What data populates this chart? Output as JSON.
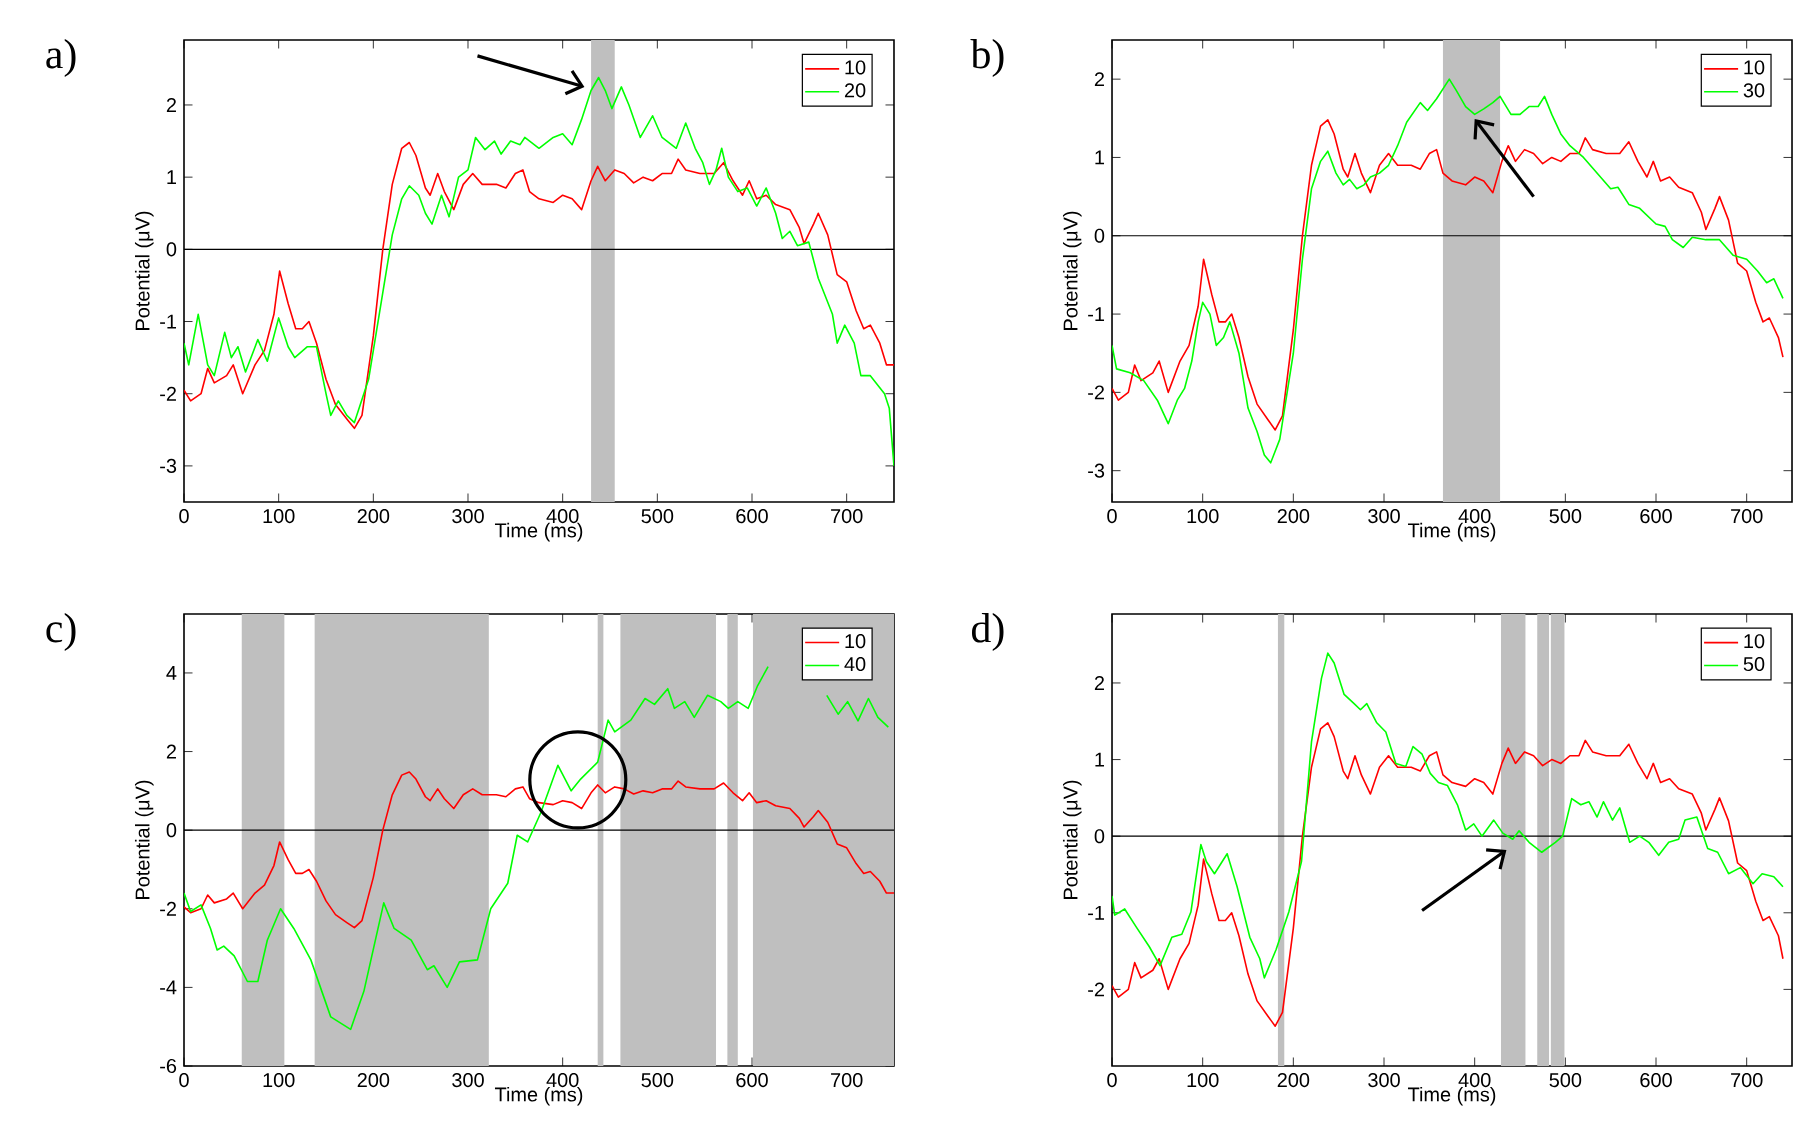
{
  "chart_data": [
    {
      "type": "line",
      "title": "a)",
      "xlabel": "Time (ms)",
      "ylabel": "Potential (μV)",
      "xlim": [
        0,
        750
      ],
      "ylim": [
        -3.5,
        2.9
      ],
      "xticks": [
        0,
        100,
        200,
        300,
        400,
        500,
        600,
        700
      ],
      "yticks": [
        -3,
        -2,
        -1,
        0,
        1,
        2
      ],
      "legend": "top right",
      "ref_lines": [
        {
          "axis": "y",
          "value": 0,
          "color": "#000000"
        }
      ],
      "bands": [
        {
          "axis": "x",
          "from": 430,
          "to": 455,
          "color": "#bfbfbf"
        }
      ],
      "series": [
        {
          "name": "10",
          "color": "#ff0000",
          "x": [
            0,
            7,
            18,
            25,
            32,
            45,
            52,
            62,
            75,
            85,
            95,
            101,
            110,
            118,
            125,
            132,
            140,
            150,
            160,
            172,
            180,
            188,
            200,
            210,
            220,
            230,
            238,
            245,
            255,
            260,
            268,
            275,
            285,
            295,
            305,
            315,
            330,
            340,
            350,
            358,
            365,
            375,
            390,
            400,
            410,
            420,
            430,
            437,
            445,
            455,
            465,
            475,
            485,
            495,
            505,
            515,
            522,
            530,
            545,
            560,
            570,
            580,
            590,
            597,
            605,
            615,
            625,
            640,
            650,
            655,
            665,
            670,
            680,
            690,
            700,
            710,
            718,
            725,
            735,
            742,
            750
          ],
          "values": [
            -1.95,
            -2.1,
            -2.0,
            -1.65,
            -1.85,
            -1.75,
            -1.6,
            -2.0,
            -1.6,
            -1.4,
            -0.9,
            -0.3,
            -0.75,
            -1.1,
            -1.1,
            -1.0,
            -1.3,
            -1.8,
            -2.15,
            -2.35,
            -2.48,
            -2.3,
            -1.2,
            0.0,
            0.9,
            1.4,
            1.48,
            1.3,
            0.85,
            0.75,
            1.05,
            0.8,
            0.55,
            0.9,
            1.05,
            0.9,
            0.9,
            0.85,
            1.05,
            1.1,
            0.8,
            0.7,
            0.65,
            0.75,
            0.7,
            0.55,
            0.95,
            1.15,
            0.95,
            1.1,
            1.05,
            0.92,
            1.0,
            0.95,
            1.05,
            1.05,
            1.25,
            1.1,
            1.05,
            1.05,
            1.2,
            0.95,
            0.75,
            0.95,
            0.7,
            0.75,
            0.62,
            0.55,
            0.3,
            0.08,
            0.35,
            0.5,
            0.2,
            -0.35,
            -0.45,
            -0.85,
            -1.1,
            -1.05,
            -1.3,
            -1.6,
            -1.6
          ]
        },
        {
          "name": "20",
          "color": "#00ff00",
          "x": [
            0,
            5,
            15,
            25,
            32,
            43,
            50,
            57,
            65,
            78,
            88,
            100,
            110,
            117,
            130,
            140,
            150,
            155,
            163,
            172,
            180,
            195,
            210,
            220,
            230,
            238,
            248,
            255,
            262,
            272,
            280,
            290,
            300,
            308,
            318,
            328,
            335,
            345,
            355,
            360,
            375,
            390,
            400,
            410,
            420,
            430,
            438,
            445,
            452,
            462,
            470,
            482,
            495,
            505,
            520,
            530,
            540,
            548,
            555,
            562,
            568,
            575,
            585,
            595,
            605,
            615,
            625,
            632,
            640,
            648,
            660,
            670,
            685,
            690,
            698,
            708,
            715,
            725,
            740,
            745,
            750
          ],
          "values": [
            -1.3,
            -1.6,
            -0.9,
            -1.6,
            -1.75,
            -1.15,
            -1.5,
            -1.35,
            -1.7,
            -1.25,
            -1.55,
            -0.95,
            -1.35,
            -1.5,
            -1.35,
            -1.35,
            -2.0,
            -2.3,
            -2.1,
            -2.3,
            -2.4,
            -1.8,
            -0.6,
            0.2,
            0.7,
            0.88,
            0.75,
            0.5,
            0.35,
            0.75,
            0.45,
            1.0,
            1.1,
            1.55,
            1.38,
            1.5,
            1.32,
            1.5,
            1.45,
            1.55,
            1.4,
            1.55,
            1.6,
            1.45,
            1.8,
            2.2,
            2.38,
            2.2,
            1.95,
            2.25,
            2.0,
            1.55,
            1.85,
            1.55,
            1.4,
            1.75,
            1.4,
            1.2,
            0.9,
            1.1,
            1.4,
            1.0,
            0.8,
            0.85,
            0.6,
            0.85,
            0.5,
            0.15,
            0.25,
            0.05,
            0.1,
            -0.4,
            -0.9,
            -1.3,
            -1.05,
            -1.3,
            -1.75,
            -1.75,
            -2.0,
            -2.2,
            -3.0
          ]
        }
      ]
    },
    {
      "type": "line",
      "title": "b)",
      "xlabel": "Time (ms)",
      "ylabel": "Potential (μV)",
      "xlim": [
        0,
        750
      ],
      "ylim": [
        -3.4,
        2.5
      ],
      "xticks": [
        0,
        100,
        200,
        300,
        400,
        500,
        600,
        700
      ],
      "yticks": [
        -3,
        -2,
        -1,
        0,
        1,
        2
      ],
      "legend": "top right",
      "ref_lines": [
        {
          "axis": "y",
          "value": 0,
          "color": "#000000"
        }
      ],
      "bands": [
        {
          "axis": "x",
          "from": 365,
          "to": 428,
          "color": "#bfbfbf"
        }
      ],
      "series": [
        {
          "name": "10",
          "color": "#ff0000",
          "x": [
            0,
            7,
            18,
            25,
            32,
            45,
            52,
            62,
            75,
            85,
            95,
            101,
            110,
            118,
            125,
            132,
            140,
            150,
            160,
            172,
            180,
            188,
            200,
            210,
            220,
            230,
            238,
            245,
            255,
            260,
            268,
            275,
            285,
            295,
            305,
            315,
            330,
            340,
            350,
            358,
            365,
            375,
            390,
            400,
            410,
            420,
            430,
            437,
            445,
            455,
            465,
            475,
            485,
            495,
            505,
            515,
            522,
            530,
            545,
            560,
            570,
            580,
            590,
            597,
            605,
            615,
            625,
            640,
            650,
            655,
            665,
            670,
            680,
            690,
            700,
            710,
            718,
            725,
            735,
            740
          ],
          "values": [
            -1.95,
            -2.1,
            -2.0,
            -1.65,
            -1.85,
            -1.75,
            -1.6,
            -2.0,
            -1.6,
            -1.4,
            -0.9,
            -0.3,
            -0.75,
            -1.1,
            -1.1,
            -1.0,
            -1.3,
            -1.8,
            -2.15,
            -2.35,
            -2.48,
            -2.3,
            -1.2,
            0.0,
            0.9,
            1.4,
            1.48,
            1.3,
            0.85,
            0.75,
            1.05,
            0.8,
            0.55,
            0.9,
            1.05,
            0.9,
            0.9,
            0.85,
            1.05,
            1.1,
            0.8,
            0.7,
            0.65,
            0.75,
            0.7,
            0.55,
            0.95,
            1.15,
            0.95,
            1.1,
            1.05,
            0.92,
            1.0,
            0.95,
            1.05,
            1.05,
            1.25,
            1.1,
            1.05,
            1.05,
            1.2,
            0.95,
            0.75,
            0.95,
            0.7,
            0.75,
            0.62,
            0.55,
            0.3,
            0.08,
            0.35,
            0.5,
            0.2,
            -0.35,
            -0.45,
            -0.85,
            -1.1,
            -1.05,
            -1.3,
            -1.55
          ]
        },
        {
          "name": "30",
          "color": "#00ff00",
          "x": [
            0,
            5,
            20,
            35,
            50,
            62,
            72,
            80,
            88,
            95,
            100,
            108,
            115,
            123,
            130,
            140,
            150,
            160,
            168,
            175,
            185,
            200,
            210,
            220,
            230,
            238,
            247,
            255,
            262,
            270,
            278,
            285,
            295,
            305,
            315,
            325,
            340,
            348,
            358,
            372,
            380,
            390,
            400,
            410,
            420,
            428,
            440,
            450,
            460,
            470,
            477,
            485,
            495,
            505,
            520,
            535,
            550,
            558,
            570,
            582,
            600,
            610,
            618,
            630,
            640,
            655,
            670,
            685,
            700,
            712,
            722,
            730,
            740
          ],
          "values": [
            -1.4,
            -1.7,
            -1.75,
            -1.85,
            -2.1,
            -2.4,
            -2.1,
            -1.95,
            -1.6,
            -1.1,
            -0.85,
            -1.0,
            -1.4,
            -1.3,
            -1.1,
            -1.5,
            -2.2,
            -2.5,
            -2.8,
            -2.9,
            -2.6,
            -1.5,
            -0.3,
            0.6,
            0.95,
            1.08,
            0.8,
            0.65,
            0.72,
            0.6,
            0.65,
            0.75,
            0.8,
            0.9,
            1.15,
            1.45,
            1.7,
            1.6,
            1.75,
            2.0,
            1.85,
            1.65,
            1.55,
            1.62,
            1.7,
            1.78,
            1.55,
            1.55,
            1.65,
            1.65,
            1.78,
            1.55,
            1.3,
            1.15,
            1.0,
            0.8,
            0.6,
            0.62,
            0.4,
            0.35,
            0.15,
            0.12,
            -0.05,
            -0.15,
            -0.02,
            -0.05,
            -0.05,
            -0.25,
            -0.3,
            -0.45,
            -0.6,
            -0.55,
            -0.8
          ]
        }
      ]
    },
    {
      "type": "line",
      "title": "c)",
      "xlabel": "Time (ms)",
      "ylabel": "Potential (μV)",
      "xlim": [
        0,
        750
      ],
      "ylim": [
        -6,
        5.5
      ],
      "xticks": [
        0,
        100,
        200,
        300,
        400,
        500,
        600,
        700
      ],
      "yticks": [
        -6,
        -4,
        -2,
        0,
        2,
        4
      ],
      "legend": "top right",
      "ref_lines": [
        {
          "axis": "y",
          "value": 0,
          "color": "#000000"
        }
      ],
      "bands": [
        {
          "axis": "x",
          "from": 61,
          "to": 106,
          "color": "#bfbfbf"
        },
        {
          "axis": "x",
          "from": 138,
          "to": 322,
          "color": "#bfbfbf"
        },
        {
          "axis": "x",
          "from": 437,
          "to": 443,
          "color": "#bfbfbf"
        },
        {
          "axis": "x",
          "from": 461,
          "to": 562,
          "color": "#bfbfbf"
        },
        {
          "axis": "x",
          "from": 574,
          "to": 585,
          "color": "#bfbfbf"
        },
        {
          "axis": "x",
          "from": 601,
          "to": 750,
          "color": "#bfbfbf"
        }
      ],
      "series": [
        {
          "name": "10",
          "color": "#ff0000",
          "x": [
            0,
            7,
            18,
            25,
            32,
            45,
            52,
            62,
            75,
            85,
            95,
            101,
            110,
            118,
            125,
            132,
            140,
            150,
            160,
            172,
            180,
            188,
            200,
            210,
            220,
            230,
            238,
            245,
            255,
            260,
            268,
            275,
            285,
            295,
            305,
            315,
            330,
            340,
            350,
            358,
            365,
            375,
            390,
            400,
            410,
            420,
            430,
            437,
            445,
            455,
            465,
            475,
            485,
            495,
            505,
            515,
            522,
            530,
            545,
            560,
            570,
            580,
            590,
            597,
            605,
            615,
            625,
            640,
            650,
            655,
            665,
            670,
            680,
            690,
            700,
            710,
            718,
            725,
            735,
            742,
            750
          ],
          "values": [
            -1.95,
            -2.1,
            -2.0,
            -1.65,
            -1.85,
            -1.75,
            -1.6,
            -2.0,
            -1.6,
            -1.4,
            -0.9,
            -0.3,
            -0.75,
            -1.1,
            -1.1,
            -1.0,
            -1.3,
            -1.8,
            -2.15,
            -2.35,
            -2.48,
            -2.3,
            -1.2,
            0.0,
            0.9,
            1.4,
            1.48,
            1.3,
            0.85,
            0.75,
            1.05,
            0.8,
            0.55,
            0.9,
            1.05,
            0.9,
            0.9,
            0.85,
            1.05,
            1.1,
            0.8,
            0.7,
            0.65,
            0.75,
            0.7,
            0.55,
            0.95,
            1.15,
            0.95,
            1.1,
            1.05,
            0.92,
            1.0,
            0.95,
            1.05,
            1.05,
            1.25,
            1.1,
            1.05,
            1.05,
            1.2,
            0.95,
            0.75,
            0.95,
            0.7,
            0.75,
            0.62,
            0.55,
            0.3,
            0.08,
            0.35,
            0.5,
            0.2,
            -0.35,
            -0.45,
            -0.85,
            -1.1,
            -1.05,
            -1.3,
            -1.6,
            -1.6
          ]
        },
        {
          "name": "40",
          "color": "#00ff00",
          "x": [
            0,
            7,
            18,
            28,
            35,
            42,
            53,
            67,
            78,
            88,
            102,
            116,
            134,
            155,
            176,
            190,
            211,
            222,
            240,
            257,
            264,
            278,
            291,
            310,
            324,
            342,
            352,
            363,
            377,
            395,
            409,
            419,
            437,
            448,
            455,
            472,
            487,
            497,
            511,
            518,
            529,
            539,
            553,
            567,
            575,
            585,
            596,
            606,
            617,
            648,
            679,
            691,
            701,
            712,
            723,
            733,
            744
          ],
          "values": [
            -1.6,
            -2.07,
            -1.9,
            -2.5,
            -3.05,
            -2.95,
            -3.2,
            -3.85,
            -3.85,
            -2.8,
            -2.0,
            -2.5,
            -3.3,
            -4.75,
            -5.07,
            -4.1,
            -1.85,
            -2.5,
            -2.8,
            -3.55,
            -3.45,
            -4.0,
            -3.35,
            -3.3,
            -2.0,
            -1.35,
            -0.13,
            -0.3,
            0.45,
            1.65,
            1.0,
            1.3,
            1.73,
            2.8,
            2.5,
            2.8,
            3.35,
            3.2,
            3.6,
            3.1,
            3.27,
            2.87,
            3.43,
            3.27,
            3.1,
            3.27,
            3.1,
            3.68,
            4.16,
            null,
            3.43,
            2.95,
            3.27,
            2.78,
            3.35,
            2.87,
            2.62
          ]
        }
      ]
    },
    {
      "type": "line",
      "title": "d)",
      "xlabel": "Time (ms)",
      "ylabel": "Potential (μV)",
      "xlim": [
        0,
        750
      ],
      "ylim": [
        -3,
        2.9
      ],
      "xticks": [
        0,
        100,
        200,
        300,
        400,
        500,
        600,
        700
      ],
      "yticks": [
        -2,
        -1,
        0,
        1,
        2
      ],
      "legend": "top right",
      "ref_lines": [
        {
          "axis": "y",
          "value": 0,
          "color": "#000000"
        }
      ],
      "bands": [
        {
          "axis": "x",
          "from": 183,
          "to": 190,
          "color": "#bfbfbf"
        },
        {
          "axis": "x",
          "from": 429,
          "to": 456,
          "color": "#bfbfbf"
        },
        {
          "axis": "x",
          "from": 469,
          "to": 482,
          "color": "#bfbfbf"
        },
        {
          "axis": "x",
          "from": 484,
          "to": 499,
          "color": "#bfbfbf"
        }
      ],
      "series": [
        {
          "name": "10",
          "color": "#ff0000",
          "x": [
            0,
            7,
            18,
            25,
            32,
            45,
            52,
            62,
            75,
            85,
            95,
            101,
            110,
            118,
            125,
            132,
            140,
            150,
            160,
            172,
            180,
            188,
            200,
            210,
            220,
            230,
            238,
            245,
            255,
            260,
            268,
            275,
            285,
            295,
            305,
            315,
            330,
            340,
            350,
            358,
            365,
            375,
            390,
            400,
            410,
            420,
            430,
            437,
            445,
            455,
            465,
            475,
            485,
            495,
            505,
            515,
            522,
            530,
            545,
            560,
            570,
            580,
            590,
            597,
            605,
            615,
            625,
            640,
            650,
            655,
            665,
            670,
            680,
            690,
            700,
            710,
            718,
            725,
            735,
            740
          ],
          "values": [
            -1.95,
            -2.1,
            -2.0,
            -1.65,
            -1.85,
            -1.75,
            -1.6,
            -2.0,
            -1.6,
            -1.4,
            -0.9,
            -0.3,
            -0.75,
            -1.1,
            -1.1,
            -1.0,
            -1.3,
            -1.8,
            -2.15,
            -2.35,
            -2.48,
            -2.3,
            -1.2,
            0.0,
            0.9,
            1.4,
            1.48,
            1.3,
            0.85,
            0.75,
            1.05,
            0.8,
            0.55,
            0.9,
            1.05,
            0.9,
            0.9,
            0.85,
            1.05,
            1.1,
            0.8,
            0.7,
            0.65,
            0.75,
            0.7,
            0.55,
            0.95,
            1.15,
            0.95,
            1.1,
            1.05,
            0.92,
            1.0,
            0.95,
            1.05,
            1.05,
            1.25,
            1.1,
            1.05,
            1.05,
            1.2,
            0.95,
            0.75,
            0.95,
            0.7,
            0.75,
            0.62,
            0.55,
            0.3,
            0.08,
            0.35,
            0.5,
            0.2,
            -0.35,
            -0.45,
            -0.85,
            -1.1,
            -1.05,
            -1.3,
            -1.6
          ]
        },
        {
          "name": "50",
          "color": "#00ff00",
          "x": [
            0,
            3,
            14,
            27,
            41,
            53,
            66,
            77,
            87,
            98,
            104,
            113,
            127,
            138,
            152,
            163,
            168,
            181,
            195,
            209,
            220,
            231,
            238,
            245,
            256,
            267,
            274,
            281,
            292,
            302,
            313,
            324,
            332,
            342,
            351,
            360,
            370,
            381,
            390,
            399,
            408,
            421,
            431,
            442,
            449,
            460,
            474,
            489,
            497,
            507,
            517,
            526,
            535,
            542,
            552,
            560,
            571,
            582,
            592,
            603,
            614,
            625,
            632,
            645,
            657,
            668,
            680,
            693,
            707,
            717,
            730,
            740
          ],
          "values": [
            -0.78,
            -1.03,
            -0.95,
            -1.19,
            -1.44,
            -1.69,
            -1.32,
            -1.28,
            -0.99,
            -0.11,
            -0.33,
            -0.49,
            -0.23,
            -0.66,
            -1.32,
            -1.6,
            -1.85,
            -1.48,
            -0.99,
            -0.33,
            1.23,
            2.06,
            2.39,
            2.26,
            1.85,
            1.73,
            1.65,
            1.73,
            1.48,
            1.36,
            0.95,
            0.91,
            1.17,
            1.07,
            0.82,
            0.7,
            0.66,
            0.41,
            0.08,
            0.16,
            0.0,
            0.21,
            0.04,
            -0.04,
            0.07,
            -0.08,
            -0.21,
            -0.08,
            0.0,
            0.49,
            0.41,
            0.45,
            0.25,
            0.45,
            0.21,
            0.37,
            -0.08,
            0.0,
            -0.08,
            -0.25,
            -0.08,
            -0.04,
            0.21,
            0.25,
            -0.16,
            -0.21,
            -0.49,
            -0.41,
            -0.62,
            -0.49,
            -0.53,
            -0.66
          ]
        }
      ]
    }
  ]
}
